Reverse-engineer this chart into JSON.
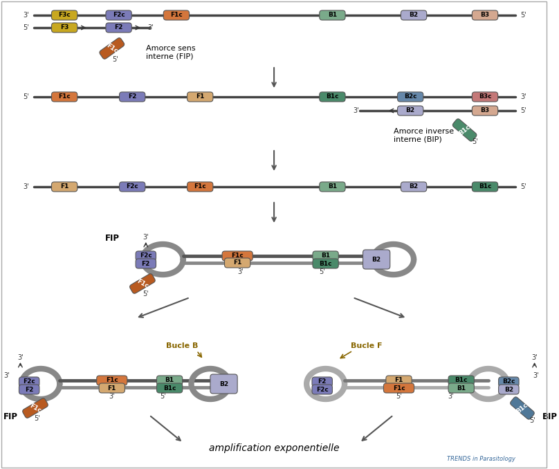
{
  "title": "",
  "background_color": "#ffffff",
  "border_color": "#cccccc",
  "watermark": "TRENDS in Parasitology",
  "labels": {
    "amorce_sens": "Amorce sens\ninterne (FIP)",
    "amorce_inverse": "Amorce inverse\ninterne (BIP)",
    "fip": "FIP",
    "bip": "BIP",
    "bucle_b": "Bucle B",
    "bucle_f": "Bucle F",
    "amplification": "amplification exponentielle"
  },
  "colors": {
    "F3c": "#c8a820",
    "F3": "#c8a820",
    "F2c": "#7b7bb8",
    "F2": "#7b7bb8",
    "F1c": "#d4763c",
    "F1c_dark": "#b85a20",
    "F1": "#d4763c",
    "B1": "#7aaa8a",
    "B1c": "#4a8a6a",
    "B2": "#aaaacc",
    "B2c": "#6688aa",
    "B3": "#d4a890",
    "B3c": "#c47878",
    "strand_dark": "#444444",
    "strand_light": "#888888",
    "loop_color": "#888888",
    "arrow_color": "#666666",
    "fip_primer_color": "#9090c0",
    "bip_primer_color": "#507898"
  }
}
